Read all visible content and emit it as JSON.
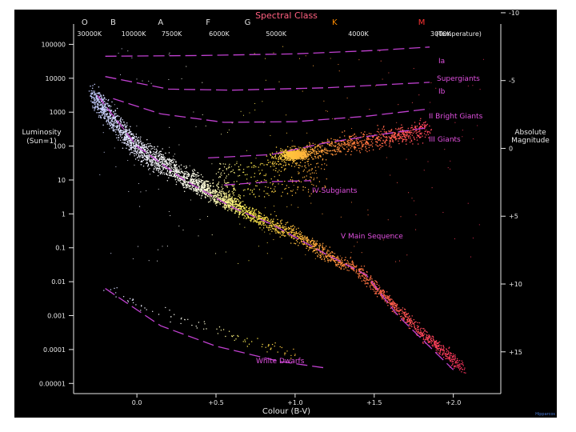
{
  "chart_data": {
    "type": "scatter",
    "title": "Spectral Class",
    "xlabel": "Colour (B-V)",
    "ylabel_left": "Luminosity (Sun=1)",
    "ylabel_right": "Absolute Magnitude",
    "x_ticks": [
      "0.0",
      "+0.5",
      "+1.0",
      "+1.5",
      "+2.0"
    ],
    "x_tick_values": [
      0.0,
      0.5,
      1.0,
      1.5,
      2.0
    ],
    "xlim": [
      -0.4,
      2.3
    ],
    "y_left_ticks": [
      "100000",
      "10000",
      "1000",
      "100",
      "10",
      "1",
      "0.1",
      "0.01",
      "0.001",
      "0.0001",
      "0.00001"
    ],
    "y_left_exponents": [
      5,
      4,
      3,
      2,
      1,
      0,
      -1,
      -2,
      -3,
      -4,
      -5
    ],
    "y_log_lim": [
      -5.3,
      5.6
    ],
    "y_right_ticks": [
      "-10",
      "-5",
      "0",
      "+5",
      "+10",
      "+15"
    ],
    "y_right_values": [
      -10,
      -5,
      0,
      5,
      10,
      15
    ],
    "spectral_classes": [
      {
        "label": "O",
        "x": -0.33,
        "color": "#e0e0e0"
      },
      {
        "label": "B",
        "x": -0.15,
        "color": "#e0e0e0"
      },
      {
        "label": "A",
        "x": 0.15,
        "color": "#e0e0e0"
      },
      {
        "label": "F",
        "x": 0.45,
        "color": "#e0e0e0"
      },
      {
        "label": "G",
        "x": 0.7,
        "color": "#e0e0e0"
      },
      {
        "label": "K",
        "x": 1.25,
        "color": "#ff8c00"
      },
      {
        "label": "M",
        "x": 1.8,
        "color": "#ff3333"
      }
    ],
    "temperature_ticks": [
      {
        "label": "30000K",
        "x": -0.3
      },
      {
        "label": "10000K",
        "x": -0.02
      },
      {
        "label": "7500K",
        "x": 0.22
      },
      {
        "label": "6000K",
        "x": 0.52
      },
      {
        "label": "5000K",
        "x": 0.88
      },
      {
        "label": "4000K",
        "x": 1.4
      },
      {
        "label": "3000K",
        "x": 1.92
      }
    ],
    "temperature_caption": "(Temperature)",
    "luminosity_classes": [
      {
        "label": "Ia",
        "points": [
          [
            -0.2,
            4.65
          ],
          [
            0.4,
            4.67
          ],
          [
            1.0,
            4.72
          ],
          [
            1.5,
            4.82
          ],
          [
            1.85,
            4.92
          ]
        ]
      },
      {
        "label": "Supergiants",
        "points": []
      },
      {
        "label": "Ib",
        "points": [
          [
            -0.2,
            4.05
          ],
          [
            0.2,
            3.68
          ],
          [
            0.6,
            3.65
          ],
          [
            1.2,
            3.72
          ],
          [
            1.85,
            3.88
          ]
        ]
      },
      {
        "label": "II Bright Giants",
        "points": [
          [
            -0.15,
            3.4
          ],
          [
            0.15,
            2.95
          ],
          [
            0.55,
            2.7
          ],
          [
            1.0,
            2.72
          ],
          [
            1.45,
            2.88
          ],
          [
            1.85,
            3.1
          ]
        ]
      },
      {
        "label": "III Giants",
        "points": [
          [
            0.45,
            1.65
          ],
          [
            0.85,
            1.75
          ],
          [
            1.2,
            2.1
          ],
          [
            1.55,
            2.35
          ],
          [
            1.85,
            2.55
          ]
        ]
      },
      {
        "label": "IV Subgiants",
        "points": [
          [
            0.55,
            0.85
          ],
          [
            0.85,
            0.95
          ],
          [
            1.1,
            0.98
          ]
        ]
      },
      {
        "label": "V Main Sequence",
        "points": [
          [
            -0.25,
            3.5
          ],
          [
            0.0,
            2.0
          ],
          [
            0.3,
            1.0
          ],
          [
            0.6,
            0.2
          ],
          [
            0.85,
            -0.3
          ],
          [
            1.2,
            -1.2
          ],
          [
            1.45,
            -1.8
          ],
          [
            1.65,
            -3.0
          ],
          [
            2.0,
            -4.6
          ]
        ]
      },
      {
        "label": "White Dwarfs",
        "points": [
          [
            -0.2,
            -2.2
          ],
          [
            0.15,
            -3.3
          ],
          [
            0.5,
            -3.9
          ],
          [
            0.9,
            -4.35
          ],
          [
            1.2,
            -4.55
          ]
        ]
      }
    ],
    "credit": "Hipparcos",
    "colors": {
      "background": "#000000",
      "axis": "#e8e8e8",
      "lines": "#c040d0",
      "line_labels": "#e050e0",
      "title": "#ff6080"
    }
  }
}
